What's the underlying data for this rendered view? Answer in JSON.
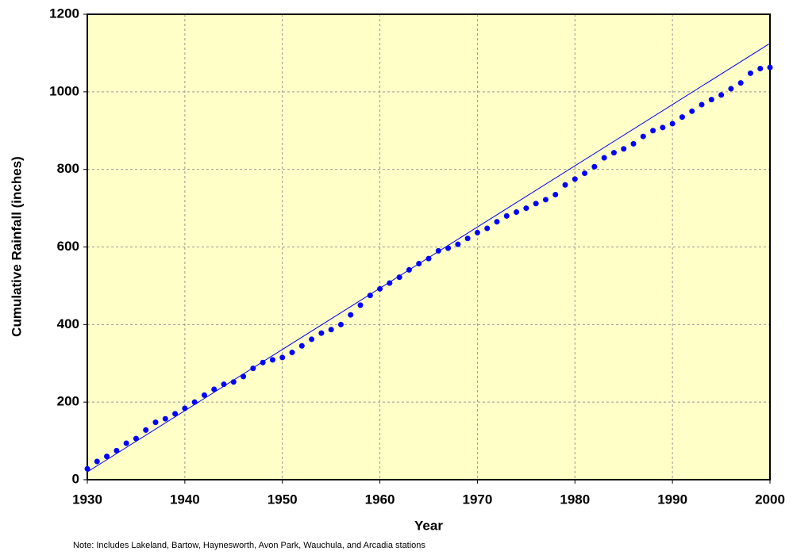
{
  "chart_data": {
    "type": "scatter",
    "xlabel": "Year",
    "ylabel": "Cumulative Rainfall  (inches)",
    "note": "Note: Includes Lakeland, Bartow, Haynesworth, Avon Park, Wauchula, and Arcadia stations",
    "x": [
      1930,
      1931,
      1932,
      1933,
      1934,
      1935,
      1936,
      1937,
      1938,
      1939,
      1940,
      1941,
      1942,
      1943,
      1944,
      1945,
      1946,
      1947,
      1948,
      1949,
      1950,
      1951,
      1952,
      1953,
      1954,
      1955,
      1956,
      1957,
      1958,
      1959,
      1960,
      1961,
      1962,
      1963,
      1964,
      1965,
      1966,
      1967,
      1968,
      1969,
      1970,
      1971,
      1972,
      1973,
      1974,
      1975,
      1976,
      1977,
      1978,
      1979,
      1980,
      1981,
      1982,
      1983,
      1984,
      1985,
      1986,
      1987,
      1988,
      1989,
      1990,
      1991,
      1992,
      1993,
      1994,
      1995,
      1996,
      1997,
      1998,
      1999,
      2000
    ],
    "series": [
      {
        "color": "#0000ff",
        "values": [
          28,
          47,
          60,
          75,
          94,
          106,
          128,
          148,
          157,
          170,
          184,
          200,
          218,
          233,
          246,
          252,
          266,
          287,
          302,
          309,
          315,
          328,
          345,
          362,
          378,
          387,
          400,
          425,
          450,
          475,
          492,
          507,
          522,
          541,
          557,
          570,
          590,
          597,
          607,
          622,
          637,
          648,
          665,
          680,
          690,
          700,
          712,
          722,
          735,
          760,
          775,
          790,
          807,
          830,
          843,
          853,
          866,
          885,
          900,
          908,
          918,
          935,
          950,
          967,
          980,
          992,
          1008,
          1023,
          1048,
          1060,
          1063
        ]
      }
    ],
    "trendline": {
      "color": "#0000ff",
      "x": [
        1930,
        2000
      ],
      "values": [
        20,
        1125
      ]
    },
    "xlim": [
      1930,
      2000
    ],
    "ylim": [
      0,
      1200
    ],
    "xticks": [
      1930,
      1940,
      1950,
      1960,
      1970,
      1980,
      1990,
      2000
    ],
    "yticks": [
      0,
      200,
      400,
      600,
      800,
      1000,
      1200
    ],
    "grid": true,
    "background": "#ffffc8"
  }
}
